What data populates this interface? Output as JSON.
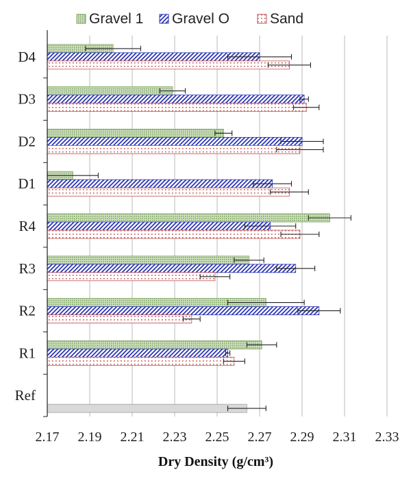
{
  "chart_data": {
    "type": "bar",
    "orientation": "horizontal",
    "title": "",
    "xlabel": "Dry Density (g/cm³)",
    "ylabel": "",
    "xlim": [
      2.17,
      2.33
    ],
    "x_ticks": [
      "2.17",
      "2.19",
      "2.21",
      "2.23",
      "2.25",
      "2.27",
      "2.29",
      "2.31",
      "2.33"
    ],
    "grid": "vertical",
    "legend_position": "top",
    "categories": [
      "D4",
      "D3",
      "D2",
      "D1",
      "R4",
      "R3",
      "R2",
      "R1",
      "Ref"
    ],
    "series": [
      {
        "name": "Gravel 1",
        "color": "#77a05a",
        "pattern": "dots",
        "values": [
          2.201,
          2.229,
          2.253,
          2.182,
          2.303,
          2.265,
          2.273,
          2.271,
          null
        ],
        "errors": [
          0.013,
          0.006,
          0.004,
          0.012,
          0.01,
          0.007,
          0.018,
          0.007,
          null
        ]
      },
      {
        "name": "Gravel O",
        "color": "#2b35b5",
        "pattern": "diagonal",
        "values": [
          2.27,
          2.291,
          2.29,
          2.276,
          2.275,
          2.287,
          2.298,
          2.255,
          null
        ],
        "errors": [
          0.015,
          0.002,
          0.01,
          0.009,
          0.012,
          0.009,
          0.01,
          0.001,
          null
        ]
      },
      {
        "name": "Sand",
        "color": "#c0504d",
        "pattern": "dots",
        "values": [
          2.284,
          2.292,
          2.289,
          2.284,
          2.289,
          2.249,
          2.238,
          2.258,
          null
        ],
        "errors": [
          0.01,
          0.006,
          0.011,
          0.009,
          0.009,
          0.007,
          0.004,
          0.005,
          null
        ]
      }
    ],
    "reference": {
      "category": "Ref",
      "value": 2.264,
      "error": 0.009,
      "color": "#d9d9d9"
    }
  }
}
